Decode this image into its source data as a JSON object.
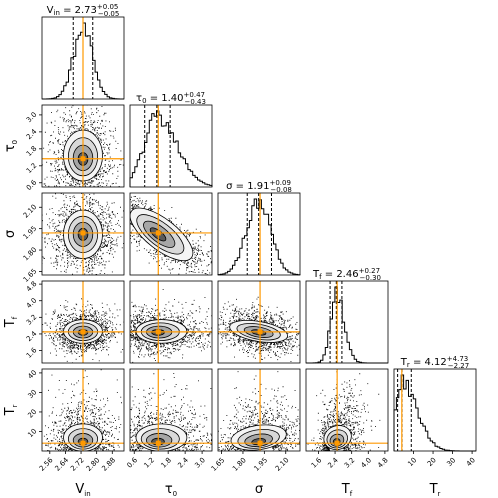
{
  "chart_data": {
    "type": "corner",
    "parameters": [
      {
        "symbol": "V",
        "subscript": "in",
        "title": "V_in = 2.73 +0.05 -0.05",
        "title_value": "2.73",
        "title_plus": "+0.05",
        "title_minus": "−0.05",
        "median": 2.73,
        "q16": 2.68,
        "q84": 2.78,
        "truth": 2.73,
        "range": [
          2.52,
          2.94
        ],
        "ticks": [
          2.56,
          2.64,
          2.72,
          2.8,
          2.88
        ],
        "tick_labels": [
          "2.56",
          "2.64",
          "2.72",
          "2.80",
          "2.88"
        ]
      },
      {
        "symbol": "τ",
        "subscript": "0",
        "title": "τ_0 = 1.40 +0.47 -0.43",
        "title_value": "1.40",
        "title_plus": "+0.47",
        "title_minus": "−0.43",
        "median": 1.4,
        "q16": 0.97,
        "q84": 1.87,
        "truth": 1.45,
        "range": [
          0.45,
          3.35
        ],
        "ticks": [
          0.6,
          1.2,
          1.8,
          2.4,
          3.0
        ],
        "tick_labels": [
          "0.6",
          "1.2",
          "1.8",
          "2.4",
          "3.0"
        ]
      },
      {
        "symbol": "σ",
        "subscript": "",
        "title": "σ = 1.91 +0.09 -0.08",
        "title_value": "1.91",
        "title_plus": "+0.09",
        "title_minus": "−0.08",
        "median": 1.91,
        "q16": 1.83,
        "q84": 2.0,
        "truth": 1.92,
        "range": [
          1.625,
          2.2
        ],
        "ticks": [
          1.65,
          1.8,
          1.95,
          2.1
        ],
        "tick_labels": [
          "1.65",
          "1.80",
          "1.95",
          "2.10"
        ]
      },
      {
        "symbol": "T",
        "subscript": "f",
        "title": "T_f = 2.46 +0.27 -0.30",
        "title_value": "2.46",
        "title_plus": "+0.27",
        "title_minus": "−0.30",
        "median": 2.46,
        "q16": 2.16,
        "q84": 2.73,
        "truth": 2.5,
        "range": [
          1.0,
          4.95
        ],
        "ticks": [
          1.6,
          2.4,
          3.2,
          4.0,
          4.8
        ],
        "tick_labels": [
          "1.6",
          "2.4",
          "3.2",
          "4.0",
          "4.8"
        ]
      },
      {
        "symbol": "T",
        "subscript": "r",
        "title": "T_r = 4.12 +4.73 -2.27",
        "title_value": "4.12",
        "title_plus": "+4.73",
        "title_minus": "−2.27",
        "median": 4.12,
        "q16": 1.85,
        "q84": 8.85,
        "truth": 4.0,
        "range": [
          0.0,
          42.0
        ],
        "ticks": [
          10,
          20,
          30,
          40
        ],
        "tick_labels": [
          "10",
          "20",
          "30",
          "40"
        ]
      }
    ],
    "truth_color": "#ff9900",
    "hist_color": "#000000",
    "contour_fills": [
      "#f5f5f5",
      "#d9d9d9",
      "#a6a6a6",
      "#595959"
    ]
  }
}
